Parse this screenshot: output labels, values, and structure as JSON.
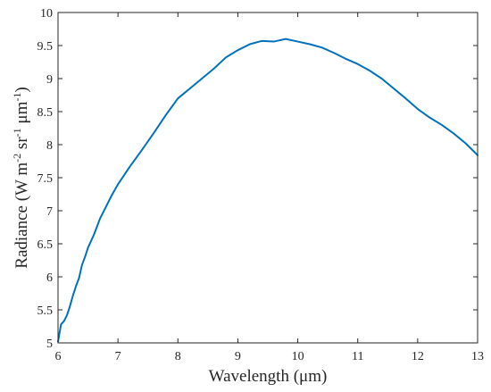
{
  "chart_data": {
    "type": "line",
    "title": "",
    "xlabel": "Wavelength (μm)",
    "ylabel": {
      "prefix": "Radiance (W m",
      "sup1": "-2",
      "mid1": " sr",
      "sup2": "-1",
      "mid2": " μm",
      "sup3": "-1",
      "suffix": ")"
    },
    "xlim": [
      6,
      13
    ],
    "ylim": [
      5,
      10
    ],
    "xticks": [
      6,
      7,
      8,
      9,
      10,
      11,
      12,
      13
    ],
    "yticks": [
      5,
      5.5,
      6,
      6.5,
      7,
      7.5,
      8,
      8.5,
      9,
      9.5,
      10
    ],
    "ytick_labels": [
      "5",
      "5.5",
      "6",
      "6.5",
      "7",
      "7.5",
      "8",
      "8.5",
      "9",
      "9.5",
      "10"
    ],
    "grid": false,
    "line_color": "#0072bd",
    "series": [
      {
        "x": [
          6.0,
          6.05,
          6.1,
          6.15,
          6.2,
          6.25,
          6.3,
          6.35,
          6.4,
          6.45,
          6.5,
          6.6,
          6.7,
          6.8,
          6.9,
          7.0,
          7.2,
          7.4,
          7.6,
          7.8,
          8.0,
          8.2,
          8.4,
          8.6,
          8.8,
          9.0,
          9.2,
          9.4,
          9.6,
          9.8,
          10.0,
          10.2,
          10.4,
          10.6,
          10.8,
          11.0,
          11.2,
          11.4,
          11.6,
          11.8,
          12.0,
          12.2,
          12.4,
          12.6,
          12.8,
          13.0
        ],
        "y": [
          5.02,
          5.28,
          5.33,
          5.42,
          5.56,
          5.72,
          5.86,
          5.98,
          6.18,
          6.3,
          6.44,
          6.64,
          6.88,
          7.06,
          7.24,
          7.4,
          7.67,
          7.92,
          8.18,
          8.45,
          8.7,
          8.85,
          9.0,
          9.15,
          9.32,
          9.43,
          9.52,
          9.57,
          9.56,
          9.6,
          9.56,
          9.52,
          9.47,
          9.39,
          9.3,
          9.22,
          9.12,
          9.0,
          8.85,
          8.7,
          8.54,
          8.41,
          8.3,
          8.17,
          8.02,
          7.84
        ]
      }
    ]
  }
}
